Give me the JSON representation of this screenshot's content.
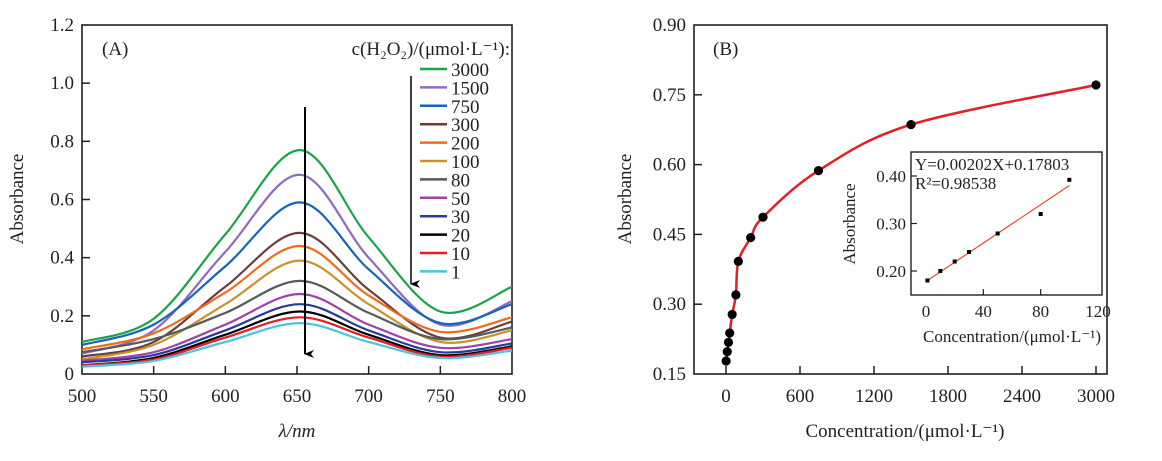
{
  "chart_data": [
    {
      "type": "line",
      "panel_label": "(A)",
      "xlabel": "λ/nm",
      "ylabel": "Absorbance",
      "xlim": [
        500,
        800
      ],
      "ylim": [
        0,
        1.2
      ],
      "xticks": [
        "500",
        "550",
        "600",
        "650",
        "700",
        "750",
        "800"
      ],
      "yticks": [
        "0",
        "0.2",
        "0.4",
        "0.6",
        "0.8",
        "1.0",
        "1.2"
      ],
      "grid": false,
      "legend_title": "c(H₂O₂)/(μmol·L⁻¹):",
      "legend_position": "top-right",
      "annotation": "downward arrow at 652 nm indicating decreasing concentration",
      "x": [
        500,
        550,
        600,
        652,
        700,
        750,
        800
      ],
      "series": [
        {
          "name": "3000",
          "color": "#1aa34a",
          "values": [
            0.11,
            0.19,
            0.48,
            0.77,
            0.47,
            0.215,
            0.3
          ]
        },
        {
          "name": "1500",
          "color": "#8e6bbf",
          "values": [
            0.07,
            0.15,
            0.42,
            0.685,
            0.4,
            0.17,
            0.25
          ]
        },
        {
          "name": "750",
          "color": "#1565b8",
          "values": [
            0.1,
            0.17,
            0.37,
            0.59,
            0.36,
            0.175,
            0.24
          ]
        },
        {
          "name": "300",
          "color": "#6b3e3e",
          "values": [
            0.06,
            0.11,
            0.3,
            0.485,
            0.29,
            0.125,
            0.18
          ]
        },
        {
          "name": "200",
          "color": "#f26b1d",
          "values": [
            0.085,
            0.14,
            0.28,
            0.44,
            0.27,
            0.145,
            0.195
          ]
        },
        {
          "name": "100",
          "color": "#c8922a",
          "values": [
            0.05,
            0.1,
            0.24,
            0.39,
            0.24,
            0.11,
            0.15
          ]
        },
        {
          "name": "80",
          "color": "#555a5f",
          "values": [
            0.075,
            0.12,
            0.21,
            0.32,
            0.21,
            0.12,
            0.16
          ]
        },
        {
          "name": "50",
          "color": "#a040a8",
          "values": [
            0.045,
            0.075,
            0.17,
            0.275,
            0.17,
            0.09,
            0.12
          ]
        },
        {
          "name": "30",
          "color": "#283c96",
          "values": [
            0.04,
            0.065,
            0.15,
            0.24,
            0.15,
            0.075,
            0.105
          ]
        },
        {
          "name": "20",
          "color": "#000000",
          "values": [
            0.03,
            0.055,
            0.135,
            0.215,
            0.135,
            0.065,
            0.095
          ]
        },
        {
          "name": "10",
          "color": "#e21f26",
          "values": [
            0.03,
            0.05,
            0.125,
            0.195,
            0.125,
            0.06,
            0.09
          ]
        },
        {
          "name": "1",
          "color": "#4cc3e0",
          "values": [
            0.025,
            0.045,
            0.11,
            0.175,
            0.11,
            0.055,
            0.08
          ]
        }
      ]
    },
    {
      "type": "scatter",
      "panel_label": "(B)",
      "xlabel": "Concentration/(μmol·L⁻¹)",
      "ylabel": "Absorbance",
      "xlim": [
        -300,
        3300
      ],
      "ylim": [
        0.15,
        0.9
      ],
      "xticks": [
        "0",
        "600",
        "1200",
        "1800",
        "2400",
        "3000"
      ],
      "yticks": [
        "0.15",
        "0.30",
        "0.45",
        "0.60",
        "0.75",
        "0.90"
      ],
      "grid": false,
      "series": [
        {
          "name": "data",
          "color": "#e21f26",
          "x": [
            1,
            10,
            20,
            30,
            50,
            80,
            100,
            200,
            300,
            750,
            1500,
            3000
          ],
          "values": [
            0.178,
            0.198,
            0.218,
            0.238,
            0.278,
            0.32,
            0.392,
            0.443,
            0.487,
            0.587,
            0.686,
            0.771
          ]
        }
      ],
      "inset": {
        "type": "scatter",
        "xlabel": "Concentration/(μmol·L⁻¹)",
        "ylabel": "Absorbance",
        "xlim": [
          -10,
          120
        ],
        "ylim": [
          0.15,
          0.45
        ],
        "xticks": [
          "0",
          "40",
          "80",
          "120"
        ],
        "yticks": [
          "0.20",
          "0.30",
          "0.40"
        ],
        "equation": "Y=0.00202X+0.17803",
        "r2_label": "R²=0.98538",
        "fit": {
          "slope": 0.00202,
          "intercept": 0.17803
        },
        "x": [
          1,
          10,
          20,
          30,
          50,
          80,
          100
        ],
        "values": [
          0.18,
          0.2,
          0.22,
          0.24,
          0.279,
          0.32,
          0.392
        ]
      }
    }
  ]
}
